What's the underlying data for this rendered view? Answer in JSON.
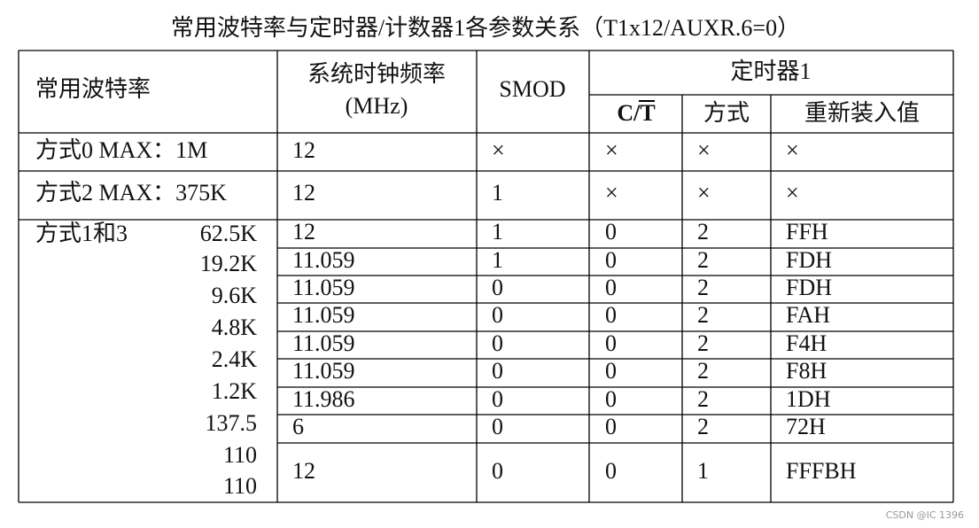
{
  "title": "常用波特率与定时器/计数器1各参数关系（T1x12/AUXR.6=0）",
  "table": {
    "headers": {
      "baud": "常用波特率",
      "clock": "系统时钟频率",
      "clock_unit": "(MHz)",
      "smod": "SMOD",
      "timer": "定时器1",
      "ct": "C/T",
      "mode": "方式",
      "reload": "重新装入值"
    },
    "rows": [
      {
        "label": "方式0 MAX：1M",
        "cells": [
          "12",
          "×",
          "×",
          "×",
          "×"
        ]
      },
      {
        "label": "方式2 MAX：375K",
        "cells": [
          "12",
          "1",
          "×",
          "×",
          "×"
        ]
      }
    ],
    "group": {
      "label": "方式1和3",
      "bauds": [
        "62.5K",
        "19.2K",
        "9.6K",
        "4.8K",
        "2.4K",
        "1.2K",
        "137.5",
        "110",
        "110"
      ],
      "rows": [
        [
          "12",
          "1",
          "0",
          "2",
          "FFH"
        ],
        [
          "11.059",
          "1",
          "0",
          "2",
          "FDH"
        ],
        [
          "11.059",
          "0",
          "0",
          "2",
          "FDH"
        ],
        [
          "11.059",
          "0",
          "0",
          "2",
          "FAH"
        ],
        [
          "11.059",
          "0",
          "0",
          "2",
          "F4H"
        ],
        [
          "11.059",
          "0",
          "0",
          "2",
          "F8H"
        ],
        [
          "11.986",
          "0",
          "0",
          "2",
          "1DH"
        ],
        [
          "6",
          "0",
          "0",
          "2",
          "72H"
        ],
        [
          "12",
          "0",
          "0",
          "1",
          "FFFBH"
        ]
      ]
    }
  },
  "watermark": "CSDN @IC 1396"
}
